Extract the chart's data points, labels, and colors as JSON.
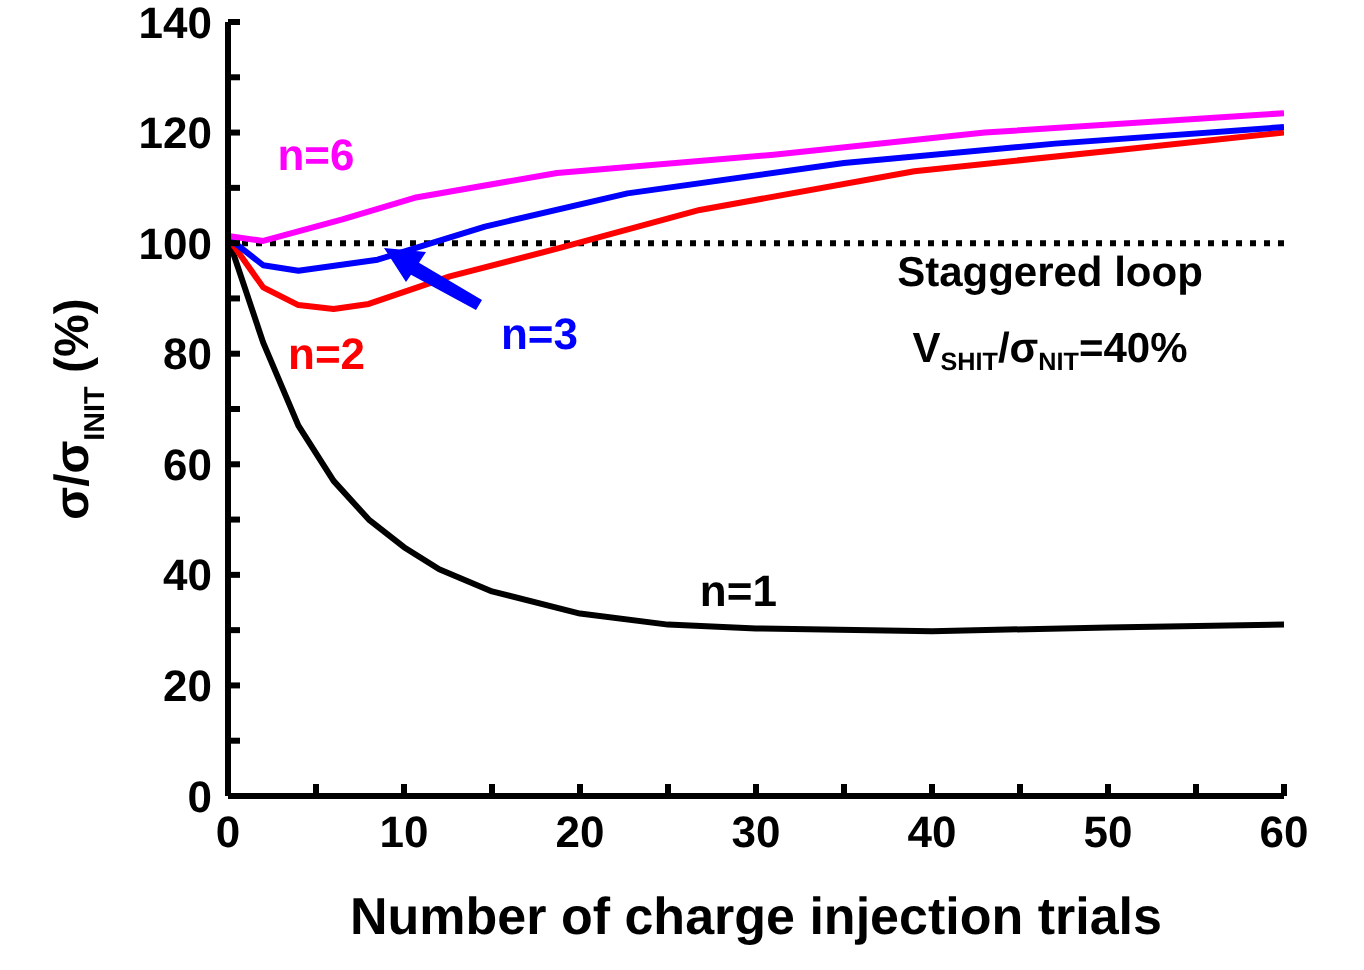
{
  "chart_data": {
    "type": "line",
    "xlabel": "Number of charge injection trials",
    "ylabel": "σ/σ$_{INIT}$ (%)",
    "xlim": [
      0,
      60
    ],
    "ylim": [
      0,
      140
    ],
    "xticks": [
      0,
      {
        "value": 5,
        "label": null
      },
      10,
      {
        "value": 15,
        "label": null
      },
      20,
      {
        "value": 25,
        "label": null
      },
      30,
      {
        "value": 35,
        "label": null
      },
      40,
      {
        "value": 45,
        "label": null
      },
      50,
      {
        "value": 55,
        "label": null
      },
      60
    ],
    "yticks": [
      0,
      {
        "value": 10,
        "label": null
      },
      20,
      {
        "value": 30,
        "label": null
      },
      40,
      {
        "value": 50,
        "label": null
      },
      60,
      {
        "value": 70,
        "label": null
      },
      80,
      {
        "value": 90,
        "label": null
      },
      100,
      {
        "value": 110,
        "label": null
      },
      120,
      {
        "value": 130,
        "label": null
      },
      140
    ],
    "grid": false,
    "legend": false,
    "marker": "none",
    "line_style": "solid",
    "series": [
      {
        "name": "n=1",
        "color": "#000000",
        "x": [
          0,
          2,
          4,
          6,
          8,
          10,
          12,
          15,
          20,
          25,
          30,
          40,
          50,
          60
        ],
        "values": [
          101,
          82,
          67,
          57,
          50,
          45,
          41,
          37,
          33,
          31,
          30.3,
          29.8,
          30.5,
          31
        ]
      },
      {
        "name": "n=2",
        "color": "#ff0000",
        "x": [
          0,
          2,
          4,
          6,
          8,
          12.6,
          18.7,
          26.8,
          39,
          51,
          60
        ],
        "values": [
          101,
          92,
          88.8,
          88.1,
          89,
          94,
          99,
          106,
          113,
          117,
          120
        ]
      },
      {
        "name": "n=3",
        "color": "#0000ff",
        "x": [
          0,
          2,
          4,
          8.5,
          14.6,
          22.7,
          35,
          47,
          60
        ],
        "values": [
          101,
          96,
          95,
          97,
          103,
          109,
          114.5,
          118,
          121
        ]
      },
      {
        "name": "n=6",
        "color": "#ff00ff",
        "x": [
          0,
          2,
          6.5,
          10.6,
          18.7,
          31,
          43,
          60
        ],
        "values": [
          101.3,
          100.4,
          104.3,
          108.2,
          112.7,
          116,
          120,
          123.5
        ]
      }
    ],
    "ref_lines": [
      {
        "axis": "y",
        "value": 100,
        "color": "#000000",
        "line_style": "dotted"
      }
    ],
    "annotations": [
      "Staggered loop",
      "V$_{SHIT}$/σ$_{NIT}$=40%"
    ]
  }
}
